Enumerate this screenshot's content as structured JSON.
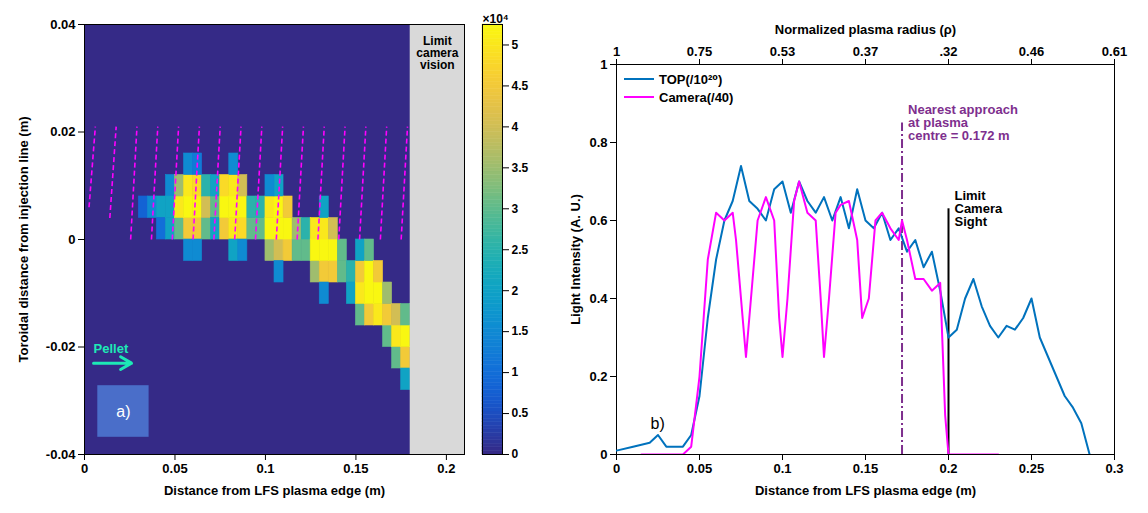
{
  "chart_data": [
    {
      "type": "heatmap",
      "panel_label": "a)",
      "xlabel": "Distance from LFS plasma edge (m)",
      "ylabel": "Toroidal distance from injection line (m)",
      "xlim": [
        0,
        0.21
      ],
      "ylim": [
        -0.04,
        0.04
      ],
      "xticks": [
        0,
        0.05,
        0.1,
        0.15,
        0.2
      ],
      "yticks": [
        -0.04,
        -0.02,
        0,
        0.02,
        0.04
      ],
      "cell_size": [
        0.005,
        0.004
      ],
      "cells": [
        [
          0.0325,
          0.006,
          8000
        ],
        [
          0.0375,
          0.006,
          15000
        ],
        [
          0.0425,
          0.006,
          20000
        ],
        [
          0.0425,
          0.002,
          10000
        ],
        [
          0.0475,
          0.002,
          20000
        ],
        [
          0.0475,
          0.01,
          15000
        ],
        [
          0.0475,
          0.006,
          20000
        ],
        [
          0.0525,
          0.002,
          30000
        ],
        [
          0.0525,
          0.006,
          50000
        ],
        [
          0.0525,
          0.01,
          35000
        ],
        [
          0.0575,
          0.002,
          45000
        ],
        [
          0.0575,
          0.006,
          52000
        ],
        [
          0.0575,
          0.01,
          50000
        ],
        [
          0.0625,
          0.002,
          45000
        ],
        [
          0.0625,
          0.006,
          52000
        ],
        [
          0.0625,
          0.01,
          48000
        ],
        [
          0.0675,
          0.002,
          30000
        ],
        [
          0.0675,
          0.006,
          40000
        ],
        [
          0.0675,
          0.01,
          25000
        ],
        [
          0.0575,
          0.014,
          15000
        ],
        [
          0.0575,
          -0.002,
          15000
        ],
        [
          0.0625,
          -0.002,
          15000
        ],
        [
          0.0625,
          0.014,
          12000
        ],
        [
          0.0725,
          0.006,
          30000
        ],
        [
          0.0725,
          0.002,
          20000
        ],
        [
          0.0725,
          0.01,
          20000
        ],
        [
          0.0775,
          0.002,
          45000
        ],
        [
          0.0775,
          0.006,
          52000
        ],
        [
          0.0775,
          0.01,
          48000
        ],
        [
          0.0825,
          0.002,
          50000
        ],
        [
          0.0825,
          0.006,
          52000
        ],
        [
          0.0825,
          0.01,
          50000
        ],
        [
          0.0875,
          0.002,
          48000
        ],
        [
          0.0875,
          0.006,
          52000
        ],
        [
          0.0875,
          0.01,
          40000
        ],
        [
          0.0925,
          0.002,
          30000
        ],
        [
          0.0925,
          0.006,
          25000
        ],
        [
          0.0825,
          0.014,
          15000
        ],
        [
          0.0825,
          -0.002,
          20000
        ],
        [
          0.0875,
          -0.002,
          15000
        ],
        [
          0.0975,
          0.002,
          30000
        ],
        [
          0.0975,
          0.006,
          25000
        ],
        [
          0.1025,
          -0.002,
          35000
        ],
        [
          0.1025,
          0.002,
          52000
        ],
        [
          0.1025,
          0.006,
          50000
        ],
        [
          0.1075,
          -0.002,
          40000
        ],
        [
          0.1075,
          0.002,
          52000
        ],
        [
          0.1075,
          0.006,
          52000
        ],
        [
          0.1075,
          0.01,
          20000
        ],
        [
          0.1125,
          -0.002,
          45000
        ],
        [
          0.1125,
          0.002,
          52000
        ],
        [
          0.1125,
          0.006,
          45000
        ],
        [
          0.1175,
          -0.002,
          30000
        ],
        [
          0.1175,
          0.002,
          35000
        ],
        [
          0.1025,
          0.01,
          15000
        ],
        [
          0.1075,
          -0.006,
          15000
        ],
        [
          0.1225,
          -0.002,
          30000
        ],
        [
          0.1225,
          0.002,
          25000
        ],
        [
          0.1275,
          -0.006,
          35000
        ],
        [
          0.1275,
          -0.002,
          52000
        ],
        [
          0.1275,
          0.002,
          50000
        ],
        [
          0.1325,
          -0.006,
          45000
        ],
        [
          0.1325,
          -0.002,
          52000
        ],
        [
          0.1325,
          0.002,
          50000
        ],
        [
          0.1325,
          0.006,
          20000
        ],
        [
          0.1375,
          -0.006,
          45000
        ],
        [
          0.1375,
          -0.002,
          52000
        ],
        [
          0.1375,
          0.002,
          40000
        ],
        [
          0.1425,
          -0.006,
          30000
        ],
        [
          0.1425,
          -0.002,
          30000
        ],
        [
          0.1325,
          -0.01,
          15000
        ],
        [
          0.1475,
          -0.006,
          25000
        ],
        [
          0.1475,
          -0.01,
          20000
        ],
        [
          0.1525,
          -0.014,
          30000
        ],
        [
          0.1525,
          -0.01,
          50000
        ],
        [
          0.1525,
          -0.006,
          45000
        ],
        [
          0.1525,
          -0.002,
          20000
        ],
        [
          0.1575,
          -0.014,
          45000
        ],
        [
          0.1575,
          -0.01,
          52000
        ],
        [
          0.1575,
          -0.006,
          52000
        ],
        [
          0.1575,
          -0.002,
          30000
        ],
        [
          0.1625,
          -0.014,
          50000
        ],
        [
          0.1625,
          -0.01,
          52000
        ],
        [
          0.1625,
          -0.006,
          45000
        ],
        [
          0.1675,
          -0.018,
          30000
        ],
        [
          0.1675,
          -0.014,
          45000
        ],
        [
          0.1675,
          -0.01,
          35000
        ],
        [
          0.1725,
          -0.022,
          30000
        ],
        [
          0.1725,
          -0.018,
          50000
        ],
        [
          0.1725,
          -0.014,
          40000
        ],
        [
          0.1775,
          -0.022,
          45000
        ],
        [
          0.1775,
          -0.018,
          52000
        ],
        [
          0.1775,
          -0.014,
          30000
        ],
        [
          0.1775,
          -0.026,
          20000
        ]
      ],
      "colorbar": {
        "lim": [
          0,
          52500
        ],
        "label": "×10⁴",
        "ticks": [
          0,
          {
            "value": 5000,
            "label": "0.5"
          },
          {
            "value": 10000,
            "label": "1"
          },
          {
            "value": 15000,
            "label": "1.5"
          },
          {
            "value": 20000,
            "label": "2"
          },
          {
            "value": 25000,
            "label": "2.5"
          },
          {
            "value": 30000,
            "label": "3"
          },
          {
            "value": 35000,
            "label": "3.5"
          },
          {
            "value": 40000,
            "label": "4"
          },
          {
            "value": 45000,
            "label": "4.5"
          },
          {
            "value": 50000,
            "label": "5"
          }
        ]
      },
      "shaded_region": {
        "x": [
          0.18,
          0.21
        ],
        "label": "Limit\ncamera\nvision",
        "color": "#d9d9d9"
      },
      "dashed_lines": {
        "color": "#ff00ff",
        "line_style": "dashed",
        "segments": [
          [
            0.0025,
            0.006,
            0.006,
            0.021
          ],
          [
            0.014,
            0.004,
            0.0175,
            0.021
          ],
          [
            0.0255,
            0,
            0.029,
            0.021
          ],
          [
            0.037,
            0,
            0.0405,
            0.021
          ],
          [
            0.0485,
            0,
            0.052,
            0.021
          ],
          [
            0.06,
            0,
            0.0635,
            0.021
          ],
          [
            0.0715,
            0,
            0.075,
            0.021
          ],
          [
            0.083,
            0,
            0.0865,
            0.021
          ],
          [
            0.0945,
            0,
            0.098,
            0.021
          ],
          [
            0.106,
            0,
            0.1095,
            0.021
          ],
          [
            0.1175,
            0,
            0.121,
            0.021
          ],
          [
            0.129,
            0,
            0.1325,
            0.021
          ],
          [
            0.1405,
            0,
            0.144,
            0.021
          ],
          [
            0.152,
            0,
            0.1555,
            0.021
          ],
          [
            0.1635,
            0,
            0.167,
            0.021
          ],
          [
            0.175,
            0,
            0.1785,
            0.021
          ]
        ]
      },
      "arrow": {
        "label": "Pellet",
        "color": "#1de9b6",
        "x1": 0.005,
        "x2": 0.026,
        "y": -0.023
      }
    },
    {
      "type": "line",
      "panel_label": "b)",
      "xlabel": "Distance from LFS plasma edge (m)",
      "ylabel": "Light Intensity (A. U.)",
      "x2label": "Normalized plasma radius (ρ)",
      "xlim": [
        0,
        0.3
      ],
      "ylim": [
        0,
        1
      ],
      "xticks": [
        0,
        0.05,
        0.1,
        0.15,
        0.2,
        0.25,
        0.3
      ],
      "yticks": [
        0,
        0.2,
        0.4,
        0.6,
        0.8,
        1
      ],
      "x2ticks": [
        {
          "value": 0,
          "label": "1"
        },
        {
          "value": 0.05,
          "label": "0.75"
        },
        {
          "value": 0.1,
          "label": "0.53"
        },
        {
          "value": 0.15,
          "label": "0.37"
        },
        {
          "value": 0.2,
          "label": ".32"
        },
        {
          "value": 0.25,
          "label": "0.46"
        },
        {
          "value": 0.3,
          "label": "0.61"
        }
      ],
      "legend": "upper left",
      "series": [
        {
          "name": "TOP(/10²⁰)",
          "color": "#0072bd",
          "x": [
            0,
            0.01,
            0.02,
            0.025,
            0.03,
            0.04,
            0.045,
            0.05,
            0.055,
            0.06,
            0.065,
            0.07,
            0.075,
            0.08,
            0.085,
            0.09,
            0.095,
            0.1,
            0.105,
            0.11,
            0.115,
            0.12,
            0.125,
            0.13,
            0.135,
            0.14,
            0.145,
            0.15,
            0.155,
            0.16,
            0.165,
            0.17,
            0.175,
            0.18,
            0.185,
            0.19,
            0.195,
            0.2,
            0.205,
            0.21,
            0.215,
            0.22,
            0.225,
            0.23,
            0.235,
            0.24,
            0.245,
            0.25,
            0.255,
            0.26,
            0.265,
            0.27,
            0.275,
            0.28,
            0.285
          ],
          "values": [
            0.01,
            0.02,
            0.03,
            0.05,
            0.02,
            0.02,
            0.05,
            0.15,
            0.35,
            0.5,
            0.6,
            0.65,
            0.74,
            0.65,
            0.63,
            0.6,
            0.68,
            0.7,
            0.62,
            0.7,
            0.65,
            0.62,
            0.66,
            0.6,
            0.66,
            0.58,
            0.68,
            0.6,
            0.58,
            0.62,
            0.55,
            0.58,
            0.52,
            0.55,
            0.48,
            0.52,
            0.42,
            0.3,
            0.32,
            0.4,
            0.45,
            0.38,
            0.33,
            0.3,
            0.33,
            0.32,
            0.35,
            0.4,
            0.3,
            0.25,
            0.2,
            0.15,
            0.12,
            0.08,
            0
          ]
        },
        {
          "name": "Camera(/40)",
          "color": "#ff00ff",
          "x": [
            0.015,
            0.04,
            0.045,
            0.05,
            0.055,
            0.06,
            0.065,
            0.07,
            0.072,
            0.075,
            0.078,
            0.081,
            0.085,
            0.09,
            0.095,
            0.098,
            0.1,
            0.103,
            0.107,
            0.11,
            0.115,
            0.12,
            0.123,
            0.125,
            0.128,
            0.132,
            0.135,
            0.14,
            0.145,
            0.148,
            0.152,
            0.156,
            0.16,
            0.165,
            0.17,
            0.172,
            0.175,
            0.18,
            0.185,
            0.19,
            0.195,
            0.198,
            0.2,
            0.23
          ],
          "values": [
            0,
            0,
            0.02,
            0.2,
            0.5,
            0.62,
            0.6,
            0.62,
            0.55,
            0.4,
            0.25,
            0.4,
            0.6,
            0.66,
            0.6,
            0.35,
            0.25,
            0.4,
            0.65,
            0.7,
            0.62,
            0.6,
            0.4,
            0.25,
            0.4,
            0.62,
            0.64,
            0.65,
            0.55,
            0.35,
            0.4,
            0.6,
            0.62,
            0.58,
            0.55,
            0.6,
            0.55,
            0.45,
            0.45,
            0.42,
            0.44,
            0.1,
            0,
            0
          ]
        }
      ],
      "annotations": [
        {
          "text": "Nearest approach\nat plasma\ncentre = 0.172 m",
          "x": 0.172,
          "ymax": 0.85,
          "color": "#7e2f8e",
          "line_style": "dashdot"
        },
        {
          "text": "Limit\nCamera\nSight",
          "x": 0.2,
          "ymax": 0.63,
          "color": "#000000",
          "line_style": "solid"
        }
      ]
    }
  ]
}
